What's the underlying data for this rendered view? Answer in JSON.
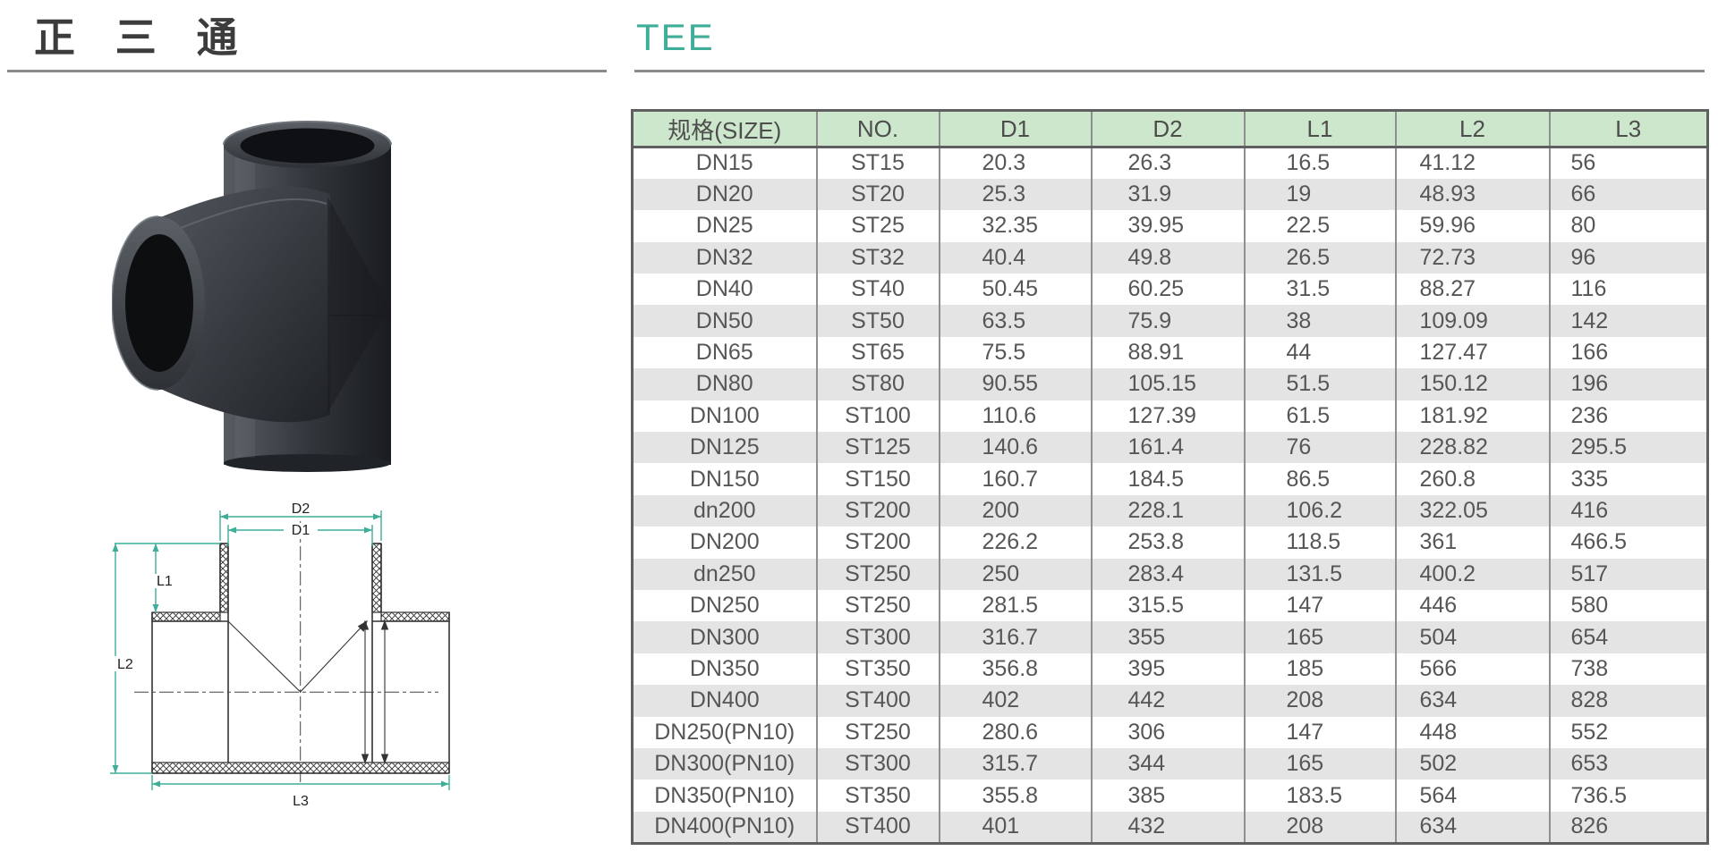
{
  "header": {
    "title_zh": "正 三 通",
    "title_en": "TEE"
  },
  "diagram": {
    "dim_labels": {
      "d2": "D2",
      "d1": "D1",
      "l1": "L1",
      "l2": "L2",
      "l3": "L3"
    }
  },
  "colors": {
    "accent_teal": "#3fae99",
    "table_header_bg": "#cde7cd",
    "table_alt_row_bg": "#e4e4e4",
    "table_grid_line": "#8f8f8f",
    "table_outer_border": "#5f5f5f",
    "table_text": "#565656",
    "title_text": "#3c3c3c",
    "underline": "#8a8a8a"
  },
  "table": {
    "columns": [
      "规格(SIZE)",
      "NO.",
      "D1",
      "D2",
      "L1",
      "L2",
      "L3"
    ],
    "rows": [
      [
        "DN15",
        "ST15",
        "20.3",
        "26.3",
        "16.5",
        "41.12",
        "56"
      ],
      [
        "DN20",
        "ST20",
        "25.3",
        "31.9",
        "19",
        "48.93",
        "66"
      ],
      [
        "DN25",
        "ST25",
        "32.35",
        "39.95",
        "22.5",
        "59.96",
        "80"
      ],
      [
        "DN32",
        "ST32",
        "40.4",
        "49.8",
        "26.5",
        "72.73",
        "96"
      ],
      [
        "DN40",
        "ST40",
        "50.45",
        "60.25",
        "31.5",
        "88.27",
        "116"
      ],
      [
        "DN50",
        "ST50",
        "63.5",
        "75.9",
        "38",
        "109.09",
        "142"
      ],
      [
        "DN65",
        "ST65",
        "75.5",
        "88.91",
        "44",
        "127.47",
        "166"
      ],
      [
        "DN80",
        "ST80",
        "90.55",
        "105.15",
        "51.5",
        "150.12",
        "196"
      ],
      [
        "DN100",
        "ST100",
        "110.6",
        "127.39",
        "61.5",
        "181.92",
        "236"
      ],
      [
        "DN125",
        "ST125",
        "140.6",
        "161.4",
        "76",
        "228.82",
        "295.5"
      ],
      [
        "DN150",
        "ST150",
        "160.7",
        "184.5",
        "86.5",
        "260.8",
        "335"
      ],
      [
        "dn200",
        "ST200",
        "200",
        "228.1",
        "106.2",
        "322.05",
        "416"
      ],
      [
        "DN200",
        "ST200",
        "226.2",
        "253.8",
        "118.5",
        "361",
        "466.5"
      ],
      [
        "dn250",
        "ST250",
        "250",
        "283.4",
        "131.5",
        "400.2",
        "517"
      ],
      [
        "DN250",
        "ST250",
        "281.5",
        "315.5",
        "147",
        "446",
        "580"
      ],
      [
        "DN300",
        "ST300",
        "316.7",
        "355",
        "165",
        "504",
        "654"
      ],
      [
        "DN350",
        "ST350",
        "356.8",
        "395",
        "185",
        "566",
        "738"
      ],
      [
        "DN400",
        "ST400",
        "402",
        "442",
        "208",
        "634",
        "828"
      ],
      [
        "DN250(PN10)",
        "ST250",
        "280.6",
        "306",
        "147",
        "448",
        "552"
      ],
      [
        "DN300(PN10)",
        "ST300",
        "315.7",
        "344",
        "165",
        "502",
        "653"
      ],
      [
        "DN350(PN10)",
        "ST350",
        "355.8",
        "385",
        "183.5",
        "564",
        "736.5"
      ],
      [
        "DN400(PN10)",
        "ST400",
        "401",
        "432",
        "208",
        "634",
        "826"
      ]
    ]
  }
}
